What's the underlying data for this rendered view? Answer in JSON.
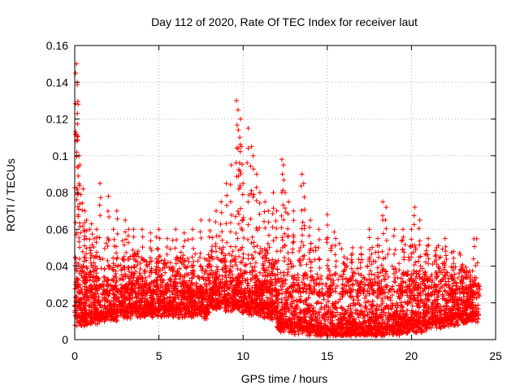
{
  "chart_data": {
    "type": "scatter",
    "title": "Day 112 of 2020, Rate Of TEC Index for receiver laut",
    "xlabel": "GPS time / hours",
    "ylabel": "ROTI / TECUs",
    "xlim": [
      0,
      25
    ],
    "ylim": [
      0,
      0.16
    ],
    "x_ticks": [
      0,
      5,
      10,
      15,
      20,
      25
    ],
    "x_tick_labels": [
      "0",
      "5",
      "10",
      "15",
      "20",
      "25"
    ],
    "y_ticks": [
      0,
      0.02,
      0.04,
      0.06,
      0.08,
      0.1,
      0.12,
      0.14,
      0.16
    ],
    "y_tick_labels": [
      "0",
      "0.02",
      "0.04",
      "0.06",
      "0.08",
      "0.1",
      "0.12",
      "0.14",
      "0.16"
    ],
    "grid": true,
    "marker": "+",
    "marker_color": "#ff0000",
    "data_time_range": [
      0,
      24
    ],
    "series": [
      {
        "name": "ROTI",
        "x": [
          0.05,
          0.1,
          0.15,
          0.2,
          0.15,
          0.25,
          0.3,
          0.5,
          0.6,
          0.7,
          0.9,
          1.0,
          1.3,
          1.5,
          2.0,
          2.3,
          2.5,
          3.0,
          3.2,
          3.5,
          4.0,
          4.5,
          5.0,
          5.5,
          6.0,
          6.5,
          7.0,
          7.5,
          8.0,
          8.4,
          8.7,
          9.0,
          9.3,
          9.6,
          9.7,
          9.8,
          9.85,
          9.9,
          10.0,
          10.3,
          10.5,
          10.6,
          10.8,
          11.0,
          11.3,
          11.5,
          11.8,
          12.0,
          12.3,
          12.4,
          12.5,
          12.7,
          13.0,
          13.5,
          13.6,
          14.0,
          14.5,
          15.0,
          15.5,
          16.0,
          16.5,
          17.0,
          17.5,
          18.0,
          18.3,
          18.5,
          19.0,
          19.5,
          20.0,
          20.2,
          20.5,
          21.0,
          21.5,
          22.0,
          22.5,
          23.0,
          23.5,
          24.0
        ],
        "y": [
          0.145,
          0.15,
          0.14,
          0.128,
          0.123,
          0.1,
          0.095,
          0.082,
          0.07,
          0.065,
          0.06,
          0.063,
          0.06,
          0.085,
          0.078,
          0.06,
          0.07,
          0.065,
          0.06,
          0.06,
          0.06,
          0.058,
          0.06,
          0.055,
          0.06,
          0.058,
          0.06,
          0.065,
          0.065,
          0.07,
          0.075,
          0.085,
          0.095,
          0.13,
          0.125,
          0.11,
          0.12,
          0.105,
          0.085,
          0.115,
          0.105,
          0.1,
          0.09,
          0.08,
          0.075,
          0.07,
          0.08,
          0.07,
          0.098,
          0.095,
          0.08,
          0.075,
          0.07,
          0.09,
          0.085,
          0.065,
          0.06,
          0.068,
          0.055,
          0.045,
          0.05,
          0.05,
          0.06,
          0.055,
          0.075,
          0.072,
          0.06,
          0.06,
          0.06,
          0.072,
          0.065,
          0.055,
          0.05,
          0.055,
          0.048,
          0.04,
          0.035,
          0.03
        ]
      }
    ]
  }
}
